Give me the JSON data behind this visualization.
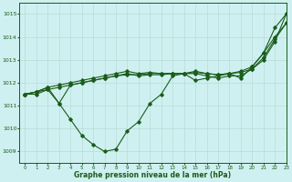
{
  "title": "Graphe pression niveau de la mer (hPa)",
  "background_color": "#cff0f0",
  "grid_color": "#b8ddd8",
  "line_color": "#1a5c1a",
  "xlim": [
    -0.5,
    23
  ],
  "ylim": [
    1008.5,
    1015.5
  ],
  "yticks": [
    1009,
    1010,
    1011,
    1012,
    1013,
    1014,
    1015
  ],
  "xticks": [
    0,
    1,
    2,
    3,
    4,
    5,
    6,
    7,
    8,
    9,
    10,
    11,
    12,
    13,
    14,
    15,
    16,
    17,
    18,
    19,
    20,
    21,
    22,
    23
  ],
  "series": [
    [
      1011.5,
      1011.5,
      1011.7,
      1011.1,
      1010.4,
      1009.7,
      1009.3,
      1009.0,
      1009.1,
      1009.9,
      1010.3,
      1011.1,
      1011.5,
      1012.3,
      1012.4,
      1012.1,
      1012.2,
      1012.3,
      1012.4,
      1012.2,
      1012.7,
      1013.3,
      1014.0,
      1014.6
    ],
    [
      1011.5,
      1011.6,
      1011.7,
      1011.8,
      1011.9,
      1012.0,
      1012.1,
      1012.2,
      1012.3,
      1012.35,
      1012.35,
      1012.4,
      1012.4,
      1012.4,
      1012.4,
      1012.45,
      1012.4,
      1012.35,
      1012.4,
      1012.45,
      1012.6,
      1013.1,
      1013.9,
      1014.6
    ],
    [
      1011.5,
      1011.6,
      1011.8,
      1011.9,
      1012.0,
      1012.1,
      1012.2,
      1012.3,
      1012.4,
      1012.5,
      1012.4,
      1012.45,
      1012.4,
      1012.4,
      1012.4,
      1012.5,
      1012.4,
      1012.35,
      1012.4,
      1012.5,
      1012.7,
      1013.3,
      1014.4,
      1015.0
    ],
    [
      1011.5,
      1011.6,
      1011.8,
      1011.1,
      1011.9,
      1012.0,
      1012.1,
      1012.2,
      1012.3,
      1012.4,
      1012.3,
      1012.35,
      1012.35,
      1012.4,
      1012.4,
      1012.4,
      1012.3,
      1012.2,
      1012.3,
      1012.3,
      1012.6,
      1013.0,
      1013.8,
      1015.0
    ]
  ],
  "figsize": [
    3.2,
    2.0
  ],
  "dpi": 100
}
